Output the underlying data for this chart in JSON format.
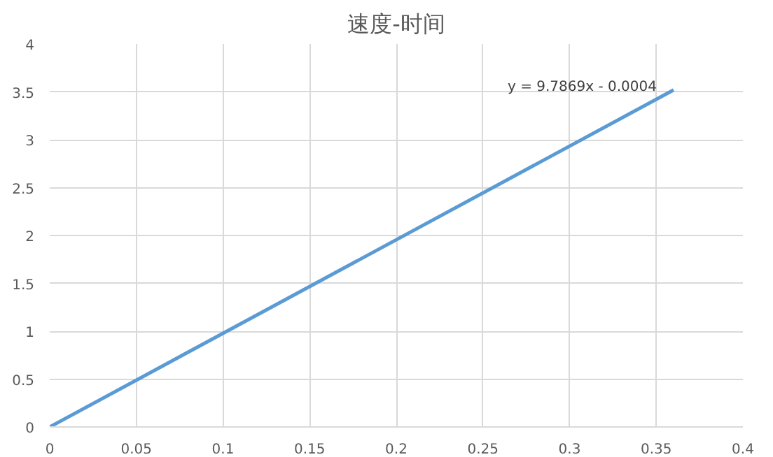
{
  "chart_data": {
    "type": "line",
    "title": "速度-时间",
    "x": [
      0,
      0.36
    ],
    "series": [
      {
        "color": "#5b9bd5",
        "values": [
          0,
          3.52
        ]
      }
    ],
    "xlim": [
      0,
      0.4
    ],
    "xticks": [
      0,
      0.05,
      0.1,
      0.15,
      0.2,
      0.25,
      0.3,
      0.35,
      0.4
    ],
    "ylim": [
      0,
      4
    ],
    "yticks": [
      0,
      0.5,
      1,
      1.5,
      2,
      2.5,
      3,
      3.5,
      4
    ],
    "grid": true,
    "annotations": [
      {
        "text": "y = 9.7869x - 0.0004",
        "x": 0.36,
        "y": 3.52
      }
    ]
  }
}
